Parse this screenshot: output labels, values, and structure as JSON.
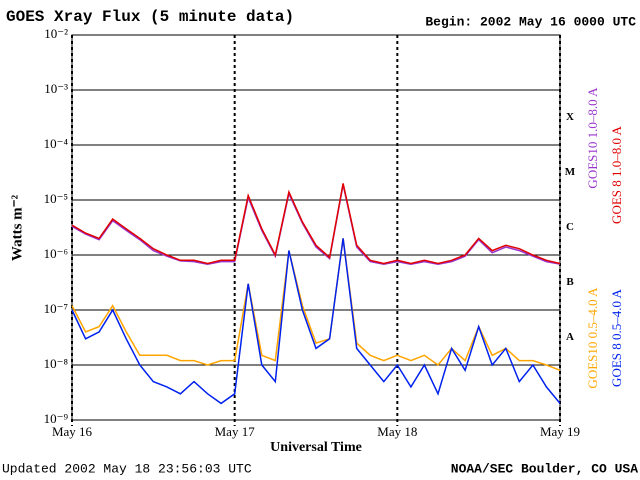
{
  "chart_data": {
    "type": "line",
    "title": "GOES Xray Flux (5 minute data)",
    "subtitle": "Begin:  2002 May 16 0000 UTC",
    "ylabel": "Watts m⁻²",
    "xlabel": "Universal Time",
    "footer_left": "Updated 2002 May 18 23:56:03 UTC",
    "footer_right": "NOAA/SEC Boulder, CO USA",
    "log_scale": true,
    "grid": true,
    "xlim": [
      0,
      72
    ],
    "xticks": [
      {
        "value": 0,
        "label": "May 16"
      },
      {
        "value": 24,
        "label": "May 17"
      },
      {
        "value": 48,
        "label": "May 18"
      },
      {
        "value": 72,
        "label": "May 19"
      }
    ],
    "ylim": [
      1e-09,
      0.01
    ],
    "yticks": [
      {
        "value": 1e-09,
        "label": "10⁻⁹"
      },
      {
        "value": 1e-08,
        "label": "10⁻⁸"
      },
      {
        "value": 1e-07,
        "label": "10⁻⁷"
      },
      {
        "value": 1e-06,
        "label": "10⁻⁶"
      },
      {
        "value": 1e-05,
        "label": "10⁻⁵"
      },
      {
        "value": 0.0001,
        "label": "10⁻⁴"
      },
      {
        "value": 0.001,
        "label": "10⁻³"
      },
      {
        "value": 0.01,
        "label": "10⁻²"
      }
    ],
    "flare_classes": [
      {
        "value": 1e-08,
        "label": "A"
      },
      {
        "value": 1e-07,
        "label": "B"
      },
      {
        "value": 1e-06,
        "label": "C"
      },
      {
        "value": 1e-05,
        "label": "M"
      },
      {
        "value": 0.0001,
        "label": "X"
      }
    ],
    "x": [
      0,
      2,
      4,
      6,
      8,
      10,
      12,
      14,
      16,
      18,
      20,
      22,
      24,
      26,
      28,
      30,
      32,
      34,
      36,
      38,
      40,
      42,
      44,
      46,
      48,
      50,
      52,
      54,
      56,
      58,
      60,
      62,
      64,
      66,
      68,
      70,
      72
    ],
    "series": [
      {
        "name": "GOES10 1.0–8.0 A",
        "color": "#9933cc",
        "values": [
          3.3e-06,
          2.4e-06,
          1.9e-06,
          4.2e-06,
          2.8e-06,
          1.9e-06,
          1.2e-06,
          9.5e-07,
          7.8e-07,
          7.6e-07,
          6.8e-07,
          7.6e-07,
          7.6e-07,
          1.1e-05,
          2.8e-06,
          9.5e-07,
          1.3e-05,
          3.8e-06,
          1.4e-06,
          8.6e-07,
          1.9e-05,
          1.4e-06,
          7.6e-07,
          6.8e-07,
          7.6e-07,
          6.8e-07,
          7.6e-07,
          6.8e-07,
          7.6e-07,
          9.5e-07,
          1.9e-06,
          1.1e-06,
          1.4e-06,
          1.2e-06,
          9.5e-07,
          7.6e-07,
          6.8e-07
        ]
      },
      {
        "name": "GOES 8 1.0–8.0 A",
        "color": "#e00000",
        "values": [
          3.5e-06,
          2.5e-06,
          2e-06,
          4.5e-06,
          3e-06,
          2e-06,
          1.3e-06,
          1e-06,
          8e-07,
          8e-07,
          7e-07,
          8e-07,
          8e-07,
          1.2e-05,
          3e-06,
          1e-06,
          1.4e-05,
          4e-06,
          1.5e-06,
          9e-07,
          2e-05,
          1.5e-06,
          8e-07,
          7e-07,
          8e-07,
          7e-07,
          8e-07,
          7e-07,
          8e-07,
          1e-06,
          2e-06,
          1.2e-06,
          1.5e-06,
          1.3e-06,
          1e-06,
          8e-07,
          7e-07
        ]
      },
      {
        "name": "GOES10 0.5–4.0 A",
        "color": "#ffa500",
        "values": [
          1.2e-07,
          4e-08,
          5e-08,
          1.2e-07,
          4e-08,
          1.5e-08,
          1.5e-08,
          1.5e-08,
          1.2e-08,
          1.2e-08,
          1e-08,
          1.2e-08,
          1.2e-08,
          3e-07,
          1.5e-08,
          1.2e-08,
          1.2e-06,
          1.2e-07,
          2.5e-08,
          3e-08,
          2e-06,
          2.5e-08,
          1.5e-08,
          1.2e-08,
          1.5e-08,
          1.2e-08,
          1.5e-08,
          1e-08,
          2e-08,
          1.2e-08,
          5e-08,
          1.5e-08,
          2e-08,
          1.2e-08,
          1.2e-08,
          1e-08,
          8e-09
        ]
      },
      {
        "name": "GOES 8 0.5–4.0 A",
        "color": "#0022ee",
        "values": [
          1e-07,
          3e-08,
          4e-08,
          1e-07,
          3e-08,
          1e-08,
          5e-09,
          4e-09,
          3e-09,
          5e-09,
          3e-09,
          2e-09,
          3e-09,
          3e-07,
          1e-08,
          5e-09,
          1.2e-06,
          1e-07,
          2e-08,
          3e-08,
          2e-06,
          2e-08,
          1e-08,
          5e-09,
          1e-08,
          4e-09,
          1e-08,
          3e-09,
          2e-08,
          8e-09,
          5e-08,
          1e-08,
          2e-08,
          5e-09,
          1e-08,
          4e-09,
          2e-09
        ]
      }
    ]
  }
}
